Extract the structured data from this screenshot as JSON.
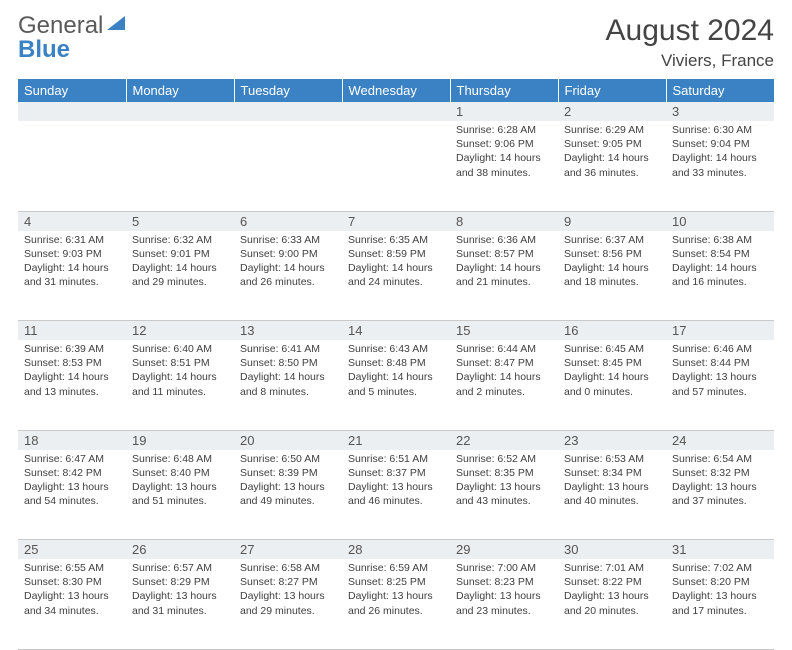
{
  "logo": {
    "part1": "General",
    "part2": "Blue"
  },
  "title": "August 2024",
  "subtitle": "Viviers, France",
  "colors": {
    "header_bg": "#3b82c4",
    "header_text": "#ffffff",
    "daynum_bg": "#eceff1",
    "body_text": "#404040",
    "border": "#c9c9c9"
  },
  "weekdays": [
    "Sunday",
    "Monday",
    "Tuesday",
    "Wednesday",
    "Thursday",
    "Friday",
    "Saturday"
  ],
  "weeks": [
    [
      {
        "n": "",
        "sr": "",
        "ss": "",
        "dl": ""
      },
      {
        "n": "",
        "sr": "",
        "ss": "",
        "dl": ""
      },
      {
        "n": "",
        "sr": "",
        "ss": "",
        "dl": ""
      },
      {
        "n": "",
        "sr": "",
        "ss": "",
        "dl": ""
      },
      {
        "n": "1",
        "sr": "Sunrise: 6:28 AM",
        "ss": "Sunset: 9:06 PM",
        "dl": "Daylight: 14 hours and 38 minutes."
      },
      {
        "n": "2",
        "sr": "Sunrise: 6:29 AM",
        "ss": "Sunset: 9:05 PM",
        "dl": "Daylight: 14 hours and 36 minutes."
      },
      {
        "n": "3",
        "sr": "Sunrise: 6:30 AM",
        "ss": "Sunset: 9:04 PM",
        "dl": "Daylight: 14 hours and 33 minutes."
      }
    ],
    [
      {
        "n": "4",
        "sr": "Sunrise: 6:31 AM",
        "ss": "Sunset: 9:03 PM",
        "dl": "Daylight: 14 hours and 31 minutes."
      },
      {
        "n": "5",
        "sr": "Sunrise: 6:32 AM",
        "ss": "Sunset: 9:01 PM",
        "dl": "Daylight: 14 hours and 29 minutes."
      },
      {
        "n": "6",
        "sr": "Sunrise: 6:33 AM",
        "ss": "Sunset: 9:00 PM",
        "dl": "Daylight: 14 hours and 26 minutes."
      },
      {
        "n": "7",
        "sr": "Sunrise: 6:35 AM",
        "ss": "Sunset: 8:59 PM",
        "dl": "Daylight: 14 hours and 24 minutes."
      },
      {
        "n": "8",
        "sr": "Sunrise: 6:36 AM",
        "ss": "Sunset: 8:57 PM",
        "dl": "Daylight: 14 hours and 21 minutes."
      },
      {
        "n": "9",
        "sr": "Sunrise: 6:37 AM",
        "ss": "Sunset: 8:56 PM",
        "dl": "Daylight: 14 hours and 18 minutes."
      },
      {
        "n": "10",
        "sr": "Sunrise: 6:38 AM",
        "ss": "Sunset: 8:54 PM",
        "dl": "Daylight: 14 hours and 16 minutes."
      }
    ],
    [
      {
        "n": "11",
        "sr": "Sunrise: 6:39 AM",
        "ss": "Sunset: 8:53 PM",
        "dl": "Daylight: 14 hours and 13 minutes."
      },
      {
        "n": "12",
        "sr": "Sunrise: 6:40 AM",
        "ss": "Sunset: 8:51 PM",
        "dl": "Daylight: 14 hours and 11 minutes."
      },
      {
        "n": "13",
        "sr": "Sunrise: 6:41 AM",
        "ss": "Sunset: 8:50 PM",
        "dl": "Daylight: 14 hours and 8 minutes."
      },
      {
        "n": "14",
        "sr": "Sunrise: 6:43 AM",
        "ss": "Sunset: 8:48 PM",
        "dl": "Daylight: 14 hours and 5 minutes."
      },
      {
        "n": "15",
        "sr": "Sunrise: 6:44 AM",
        "ss": "Sunset: 8:47 PM",
        "dl": "Daylight: 14 hours and 2 minutes."
      },
      {
        "n": "16",
        "sr": "Sunrise: 6:45 AM",
        "ss": "Sunset: 8:45 PM",
        "dl": "Daylight: 14 hours and 0 minutes."
      },
      {
        "n": "17",
        "sr": "Sunrise: 6:46 AM",
        "ss": "Sunset: 8:44 PM",
        "dl": "Daylight: 13 hours and 57 minutes."
      }
    ],
    [
      {
        "n": "18",
        "sr": "Sunrise: 6:47 AM",
        "ss": "Sunset: 8:42 PM",
        "dl": "Daylight: 13 hours and 54 minutes."
      },
      {
        "n": "19",
        "sr": "Sunrise: 6:48 AM",
        "ss": "Sunset: 8:40 PM",
        "dl": "Daylight: 13 hours and 51 minutes."
      },
      {
        "n": "20",
        "sr": "Sunrise: 6:50 AM",
        "ss": "Sunset: 8:39 PM",
        "dl": "Daylight: 13 hours and 49 minutes."
      },
      {
        "n": "21",
        "sr": "Sunrise: 6:51 AM",
        "ss": "Sunset: 8:37 PM",
        "dl": "Daylight: 13 hours and 46 minutes."
      },
      {
        "n": "22",
        "sr": "Sunrise: 6:52 AM",
        "ss": "Sunset: 8:35 PM",
        "dl": "Daylight: 13 hours and 43 minutes."
      },
      {
        "n": "23",
        "sr": "Sunrise: 6:53 AM",
        "ss": "Sunset: 8:34 PM",
        "dl": "Daylight: 13 hours and 40 minutes."
      },
      {
        "n": "24",
        "sr": "Sunrise: 6:54 AM",
        "ss": "Sunset: 8:32 PM",
        "dl": "Daylight: 13 hours and 37 minutes."
      }
    ],
    [
      {
        "n": "25",
        "sr": "Sunrise: 6:55 AM",
        "ss": "Sunset: 8:30 PM",
        "dl": "Daylight: 13 hours and 34 minutes."
      },
      {
        "n": "26",
        "sr": "Sunrise: 6:57 AM",
        "ss": "Sunset: 8:29 PM",
        "dl": "Daylight: 13 hours and 31 minutes."
      },
      {
        "n": "27",
        "sr": "Sunrise: 6:58 AM",
        "ss": "Sunset: 8:27 PM",
        "dl": "Daylight: 13 hours and 29 minutes."
      },
      {
        "n": "28",
        "sr": "Sunrise: 6:59 AM",
        "ss": "Sunset: 8:25 PM",
        "dl": "Daylight: 13 hours and 26 minutes."
      },
      {
        "n": "29",
        "sr": "Sunrise: 7:00 AM",
        "ss": "Sunset: 8:23 PM",
        "dl": "Daylight: 13 hours and 23 minutes."
      },
      {
        "n": "30",
        "sr": "Sunrise: 7:01 AM",
        "ss": "Sunset: 8:22 PM",
        "dl": "Daylight: 13 hours and 20 minutes."
      },
      {
        "n": "31",
        "sr": "Sunrise: 7:02 AM",
        "ss": "Sunset: 8:20 PM",
        "dl": "Daylight: 13 hours and 17 minutes."
      }
    ]
  ]
}
